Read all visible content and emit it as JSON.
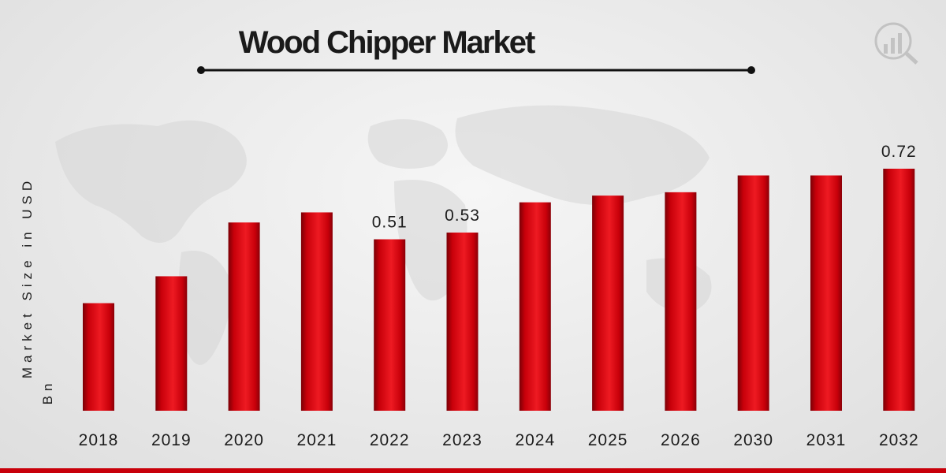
{
  "chart_data": {
    "type": "bar",
    "title": "Wood Chipper Market",
    "ylabel_line1": "Market Size in USD",
    "ylabel_line2": "Bn",
    "xlabel": "",
    "categories": [
      "2018",
      "2019",
      "2020",
      "2021",
      "2022",
      "2023",
      "2024",
      "2025",
      "2026",
      "2030",
      "2031",
      "2032"
    ],
    "values": [
      0.32,
      0.4,
      0.56,
      0.59,
      0.51,
      0.53,
      0.62,
      0.64,
      0.65,
      0.7,
      0.7,
      0.72
    ],
    "data_labels": [
      {
        "category": "2022",
        "text": "0.51"
      },
      {
        "category": "2023",
        "text": "0.53"
      },
      {
        "category": "2032",
        "text": "0.72"
      }
    ],
    "ylim": [
      0,
      0.72
    ],
    "grid": false,
    "legend": "none",
    "bar_color": "#c8000a",
    "bar_highlight": "#ee1a22",
    "bar_shadow": "#7a0006"
  },
  "colors": {
    "accent_bottom_bar": "#c8000a",
    "title_rule": "#111111"
  },
  "icons": [
    "research-logo-icon",
    "world-map-watermark-icon"
  ]
}
